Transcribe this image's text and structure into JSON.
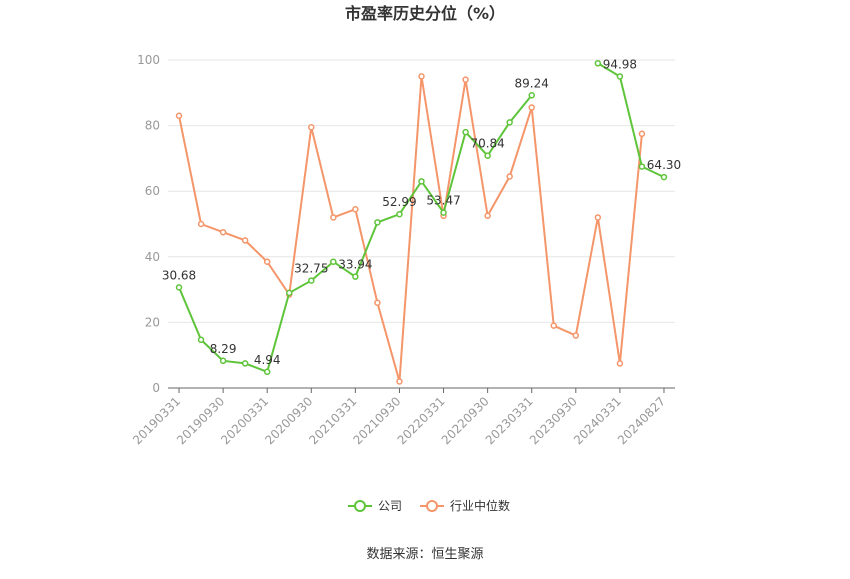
{
  "chart_data": {
    "type": "line",
    "title": "市盈率历史分位（%）",
    "categories": [
      "20190331",
      null,
      "20190930",
      null,
      "20200331",
      null,
      "20200930",
      null,
      "20210331",
      null,
      "20210930",
      null,
      "20220331",
      null,
      "20220930",
      null,
      "20230331",
      null,
      "20230930",
      null,
      "20240331",
      null,
      "20240827"
    ],
    "series": [
      {
        "name": "公司",
        "color": "#5ec43a",
        "values": [
          30.68,
          14.7,
          8.29,
          7.5,
          4.94,
          29,
          32.75,
          38.5,
          33.94,
          50.5,
          52.99,
          63,
          53.47,
          78,
          70.84,
          81,
          89.24,
          null,
          null,
          99,
          94.98,
          67.5,
          64.3
        ],
        "value_labels": [
          "30.68",
          null,
          "8.29",
          null,
          "4.94",
          null,
          "32.75",
          null,
          "33.94",
          null,
          "52.99",
          null,
          "53.47",
          null,
          "70.84",
          null,
          "89.24",
          null,
          null,
          null,
          "94.98",
          null,
          "64.30"
        ]
      },
      {
        "name": "行业中位数",
        "color": "#f4956a",
        "values": [
          83,
          50,
          47.5,
          45,
          38.5,
          28.5,
          79.5,
          52,
          54.5,
          26,
          2,
          95,
          52.5,
          94,
          52.5,
          64.5,
          85.5,
          19,
          16,
          52,
          7.5,
          77.5,
          null
        ]
      }
    ],
    "ylim": [
      0,
      100
    ],
    "yticks": [
      0,
      20,
      40,
      60,
      80,
      100
    ],
    "grid": true,
    "source": "数据来源：恒生聚源"
  }
}
